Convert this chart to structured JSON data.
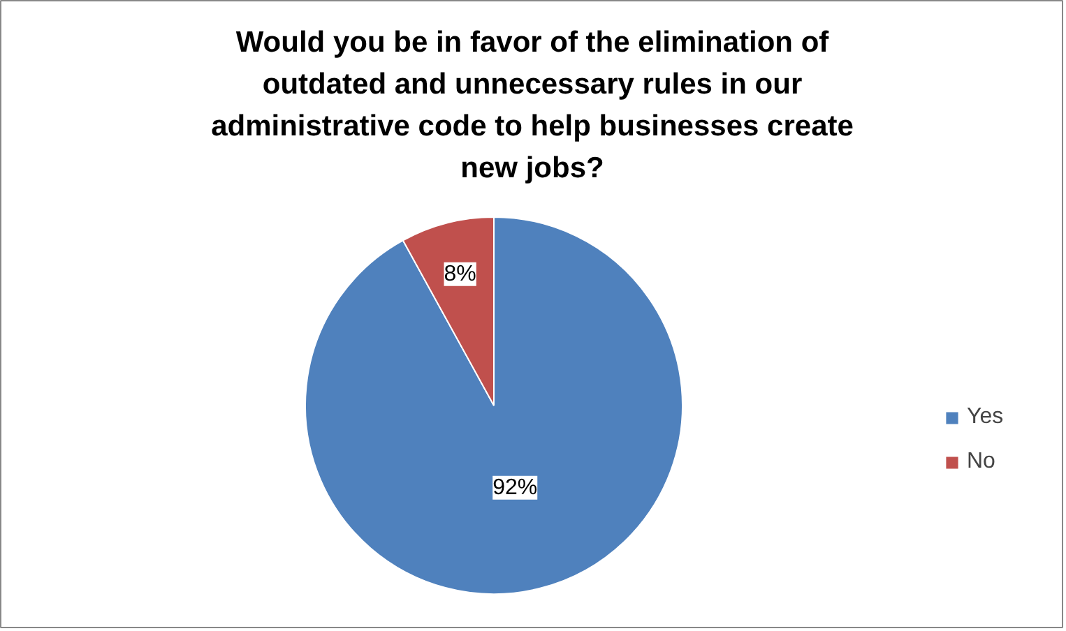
{
  "chart_data": {
    "type": "pie",
    "title": "Would you be in favor of the elimination of outdated and unnecessary rules in our administrative code to help businesses create new jobs?",
    "categories": [
      "Yes",
      "No"
    ],
    "values": [
      92,
      8
    ],
    "colors": [
      "#4f81bd",
      "#c0504d"
    ],
    "value_labels": [
      "92%",
      "8%"
    ],
    "legend": "right"
  }
}
